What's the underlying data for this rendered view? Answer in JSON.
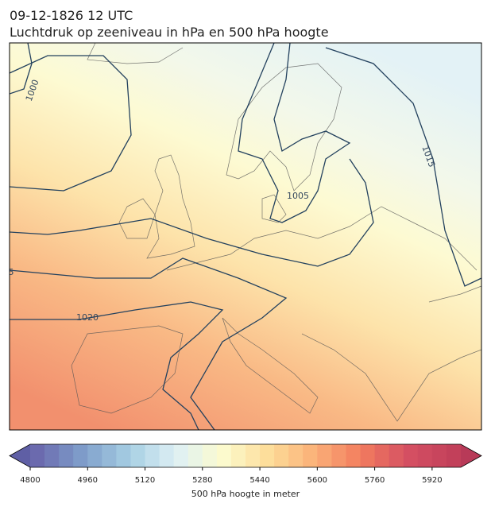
{
  "header": {
    "title": "09-12-1826 12 UTC",
    "subtitle": "Luchtdruk op zeeniveau in hPa en 500 hPa hoogte"
  },
  "map": {
    "contour_labels": [
      "1000",
      "1005",
      "1015",
      "1020",
      "5"
    ]
  },
  "colorbar": {
    "label": "500 hPa hoogte in meter",
    "range": [
      4800,
      6000
    ],
    "ticks": [
      4800,
      4960,
      5120,
      5280,
      5440,
      5600,
      5760,
      5920
    ]
  }
}
